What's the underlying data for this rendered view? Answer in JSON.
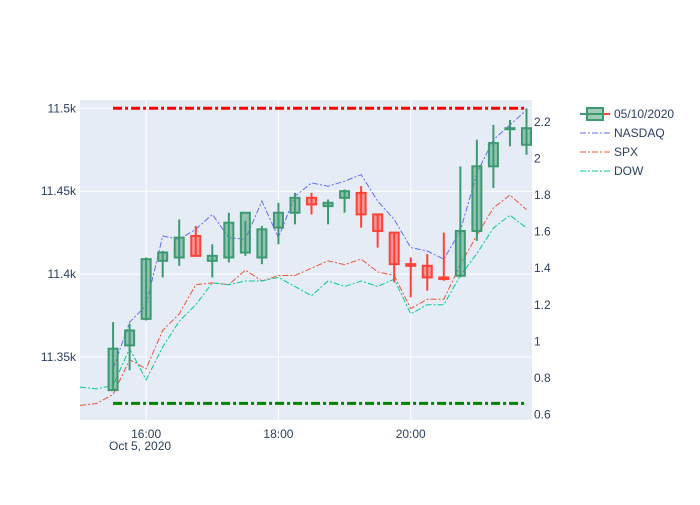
{
  "chart_data": {
    "type": "candlestick",
    "title": "",
    "x_axis": {
      "tick_labels": [
        "16:00",
        "18:00",
        "20:00"
      ],
      "tick_times": [
        "16:00",
        "18:00",
        "20:00"
      ],
      "date_label": "Oct 5, 2020",
      "range": [
        "15:00",
        "21:50"
      ],
      "grid": true
    },
    "y_axis_left": {
      "tick_labels": [
        "11.35k",
        "11.4k",
        "11.45k",
        "11.5k"
      ],
      "tick_values": [
        11350,
        11400,
        11450,
        11500
      ],
      "range": [
        11312,
        11505
      ],
      "grid": true
    },
    "y_axis_right": {
      "tick_labels": [
        "0.6",
        "0.8",
        "1",
        "1.2",
        "1.4",
        "1.6",
        "1.8",
        "2",
        "2.2"
      ],
      "tick_values": [
        0.6,
        0.8,
        1.0,
        1.2,
        1.4,
        1.6,
        1.8,
        2.0,
        2.2
      ],
      "range": [
        0.57,
        2.32
      ]
    },
    "candles": {
      "name": "05/10/2020",
      "increasing_color": "#3d9970",
      "decreasing_color": "#ff4136",
      "times": [
        "15:30",
        "15:45",
        "16:00",
        "16:15",
        "16:30",
        "16:45",
        "17:00",
        "17:15",
        "17:30",
        "17:45",
        "18:00",
        "18:15",
        "18:30",
        "18:45",
        "19:00",
        "19:15",
        "19:30",
        "19:45",
        "20:00",
        "20:15",
        "20:30",
        "20:45",
        "21:00",
        "21:15",
        "21:30",
        "21:45"
      ],
      "open": [
        11330,
        11357,
        11373,
        11408,
        11410,
        11423,
        11408,
        11410,
        11413,
        11410,
        11428,
        11437,
        11446,
        11441,
        11446,
        11449,
        11436,
        11425,
        11406,
        11405,
        11398,
        11399,
        11426,
        11465,
        11488,
        11478
      ],
      "high": [
        11371,
        11370,
        11410,
        11414,
        11433,
        11429,
        11418,
        11437,
        11432,
        11429,
        11443,
        11449,
        11449,
        11445,
        11451,
        11453,
        11436,
        11425,
        11410,
        11412,
        11425,
        11465,
        11481,
        11490,
        11493,
        11500
      ],
      "low": [
        11330,
        11342,
        11372,
        11398,
        11405,
        11411,
        11398,
        11407,
        11411,
        11406,
        11418,
        11430,
        11436,
        11430,
        11437,
        11428,
        11416,
        11395,
        11386,
        11390,
        11396,
        11398,
        11420,
        11452,
        11477,
        11472
      ],
      "close": [
        11355,
        11366,
        11409,
        11413,
        11422,
        11411,
        11411,
        11431,
        11437,
        11427,
        11437,
        11446,
        11442,
        11443,
        11450,
        11436,
        11426,
        11406,
        11405,
        11398,
        11397,
        11426,
        11465,
        11479,
        11488,
        11488
      ]
    },
    "series": [
      {
        "name": "NASDAQ",
        "color": "#636efa",
        "dash": "dashdot",
        "axis": "left",
        "values": [
          11343,
          11371,
          11381,
          11423,
          11421,
          11427,
          11436,
          11422,
          11421,
          11444,
          11422,
          11447,
          11455,
          11453,
          11456,
          11460,
          11444,
          11433,
          11416,
          11414,
          11409,
          11426,
          11461,
          11481,
          11490,
          11499
        ]
      },
      {
        "name": "SPX",
        "color": "#ef553b",
        "dash": "dashdot",
        "axis": "right",
        "x_start": "15:00",
        "values": [
          0.65,
          0.66,
          0.71,
          0.9,
          0.85,
          1.06,
          1.15,
          1.31,
          1.32,
          1.31,
          1.39,
          1.33,
          1.36,
          1.36,
          1.4,
          1.44,
          1.42,
          1.45,
          1.38,
          1.36,
          1.18,
          1.23,
          1.23,
          1.42,
          1.58,
          1.73,
          1.8,
          1.72
        ]
      },
      {
        "name": "DOW",
        "color": "#00cc96",
        "dash": "dashdot",
        "axis": "right",
        "x_start": "15:00",
        "values": [
          0.75,
          0.74,
          0.76,
          0.96,
          0.79,
          0.97,
          1.11,
          1.2,
          1.32,
          1.31,
          1.33,
          1.33,
          1.35,
          1.3,
          1.25,
          1.33,
          1.3,
          1.33,
          1.3,
          1.34,
          1.15,
          1.2,
          1.2,
          1.36,
          1.48,
          1.62,
          1.69,
          1.62
        ]
      }
    ],
    "reference_lines": [
      {
        "color": "#ff0000",
        "value": 11500,
        "axis": "left"
      },
      {
        "color": "#008000",
        "value": 11322,
        "axis": "left"
      }
    ],
    "legend": {
      "position": "top-right",
      "entries": [
        "05/10/2020",
        "NASDAQ",
        "SPX",
        "DOW"
      ]
    },
    "plot_background": "#e5ecf6",
    "grid_color": "#ffffff"
  }
}
